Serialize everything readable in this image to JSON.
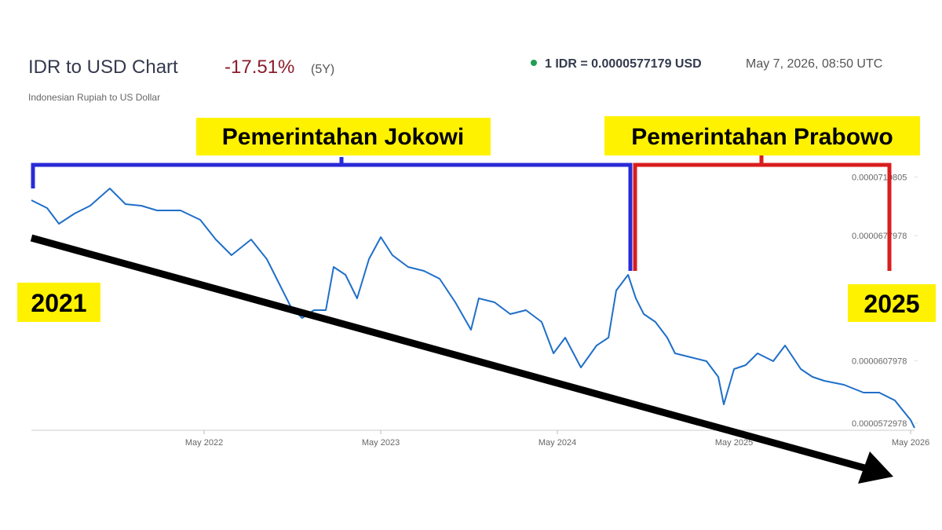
{
  "header": {
    "title": "IDR to USD Chart",
    "change": "-17.51%",
    "period": "(5Y)",
    "subtitle": "Indonesian Rupiah to US Dollar",
    "rate": "1 IDR = 0.0000577179 USD",
    "timestamp": "May 7, 2026, 08:50 UTC"
  },
  "annotations": {
    "left_bracket": "Pemerintahan Jokowi",
    "right_bracket": "Pemerintahan Prabowo",
    "start_year": "2021",
    "end_year": "2025"
  },
  "chart_data": {
    "type": "line",
    "x": [
      2021.36,
      2021.449,
      2021.516,
      2021.604,
      2021.693,
      2021.804,
      2021.893,
      2021.982,
      2022.071,
      2022.204,
      2022.316,
      2022.404,
      2022.493,
      2022.604,
      2022.693,
      2022.76,
      2022.827,
      2022.893,
      2022.96,
      2023.027,
      2023.071,
      2023.138,
      2023.204,
      2023.271,
      2023.338,
      2023.404,
      2023.493,
      2023.582,
      2023.671,
      2023.76,
      2023.849,
      2023.893,
      2023.982,
      2024.071,
      2024.16,
      2024.249,
      2024.316,
      2024.382,
      2024.471,
      2024.56,
      2024.627,
      2024.671,
      2024.738,
      2024.782,
      2024.827,
      2024.893,
      2024.96,
      2025.004,
      2025.093,
      2025.182,
      2025.249,
      2025.28,
      2025.338,
      2025.404,
      2025.471,
      2025.56,
      2025.627,
      2025.716,
      2025.782,
      2025.849,
      2025.96,
      2026.071,
      2026.16,
      2026.249,
      2026.338,
      2026.36
    ],
    "series": [
      {
        "color": "#1f6fc8",
        "values": [
          6.9785e-05,
          6.9345e-05,
          6.8465e-05,
          6.9037e-05,
          6.9477e-05,
          7.0444e-05,
          6.9565e-05,
          6.9477e-05,
          6.9213e-05,
          6.9213e-05,
          6.8685e-05,
          6.7586e-05,
          6.6706e-05,
          6.7586e-05,
          6.6486e-05,
          6.5167e-05,
          6.3847e-05,
          6.3188e-05,
          6.3628e-05,
          6.3628e-05,
          6.6046e-05,
          6.5607e-05,
          6.4287e-05,
          6.6486e-05,
          6.7718e-05,
          6.6706e-05,
          6.6046e-05,
          6.5827e-05,
          6.5387e-05,
          6.4067e-05,
          6.2528e-05,
          6.4287e-05,
          6.4067e-05,
          6.3408e-05,
          6.3628e-05,
          6.2968e-05,
          6.1209e-05,
          6.2088e-05,
          6.0417e-05,
          6.1648e-05,
          6.2088e-05,
          6.4727e-05,
          6.5607e-05,
          6.4287e-05,
          6.3408e-05,
          6.2968e-05,
          6.2088e-05,
          6.1209e-05,
          6.0989e-05,
          6.0769e-05,
          5.9889e-05,
          5.835e-05,
          6.0329e-05,
          6.0549e-05,
          6.1209e-05,
          6.0769e-05,
          6.1648e-05,
          6.0329e-05,
          5.9889e-05,
          5.9669e-05,
          5.9449e-05,
          5.901e-05,
          5.901e-05,
          5.857e-05,
          5.747e-05,
          5.7031e-05
        ]
      }
    ],
    "xlim": [
      2021.36,
      2026.36
    ],
    "xticks": [
      {
        "value": 2022.338,
        "label": "May 2022"
      },
      {
        "value": 2023.338,
        "label": "May 2023"
      },
      {
        "value": 2024.338,
        "label": "May 2024"
      },
      {
        "value": 2025.338,
        "label": "May 2025"
      },
      {
        "value": 2026.338,
        "label": "May 2026"
      }
    ],
    "ylim": [
      5.69e-05,
      7.15e-05
    ],
    "yticks": [
      {
        "value": 7.10805e-05,
        "label": "0.0000710805"
      },
      {
        "value": 6.77978e-05,
        "label": "0.0000677978"
      },
      {
        "value": 6.07978e-05,
        "label": "0.0000607978"
      },
      {
        "value": 5.72978e-05,
        "label": "0.0000572978"
      }
    ],
    "grid": false
  }
}
